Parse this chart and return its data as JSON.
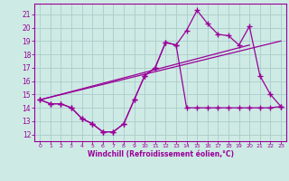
{
  "xlabel": "Windchill (Refroidissement éolien,°C)",
  "bg_color": "#ceeae4",
  "line_color": "#990099",
  "grid_color": "#aacccc",
  "hours": [
    0,
    1,
    2,
    3,
    4,
    5,
    6,
    7,
    8,
    9,
    10,
    11,
    12,
    13,
    14,
    15,
    16,
    17,
    18,
    19,
    20,
    21,
    22,
    23
  ],
  "temp_line": [
    14.6,
    14.3,
    14.3,
    14.0,
    13.2,
    12.8,
    12.2,
    12.2,
    12.8,
    14.6,
    16.4,
    17.0,
    18.9,
    18.7,
    19.8,
    21.3,
    20.3,
    19.5,
    19.4,
    18.7,
    20.1,
    16.4,
    15.0,
    14.1
  ],
  "windchill_line": [
    14.6,
    14.3,
    14.3,
    14.0,
    13.2,
    12.8,
    12.2,
    12.2,
    12.8,
    14.6,
    16.4,
    17.0,
    18.9,
    18.7,
    14.0,
    14.0,
    14.0,
    14.0,
    14.0,
    14.0,
    14.0,
    14.0,
    14.0,
    14.1
  ],
  "trend_line1_x": [
    0,
    23
  ],
  "trend_line1_y": [
    14.6,
    19.0
  ],
  "trend_line2_x": [
    0,
    20
  ],
  "trend_line2_y": [
    14.6,
    18.7
  ],
  "ylim": [
    11.5,
    21.8
  ],
  "yticks": [
    12,
    13,
    14,
    15,
    16,
    17,
    18,
    19,
    20,
    21
  ],
  "xlim": [
    -0.5,
    23.5
  ],
  "xticks": [
    0,
    1,
    2,
    3,
    4,
    5,
    6,
    7,
    8,
    9,
    10,
    11,
    12,
    13,
    14,
    15,
    16,
    17,
    18,
    19,
    20,
    21,
    22,
    23
  ]
}
